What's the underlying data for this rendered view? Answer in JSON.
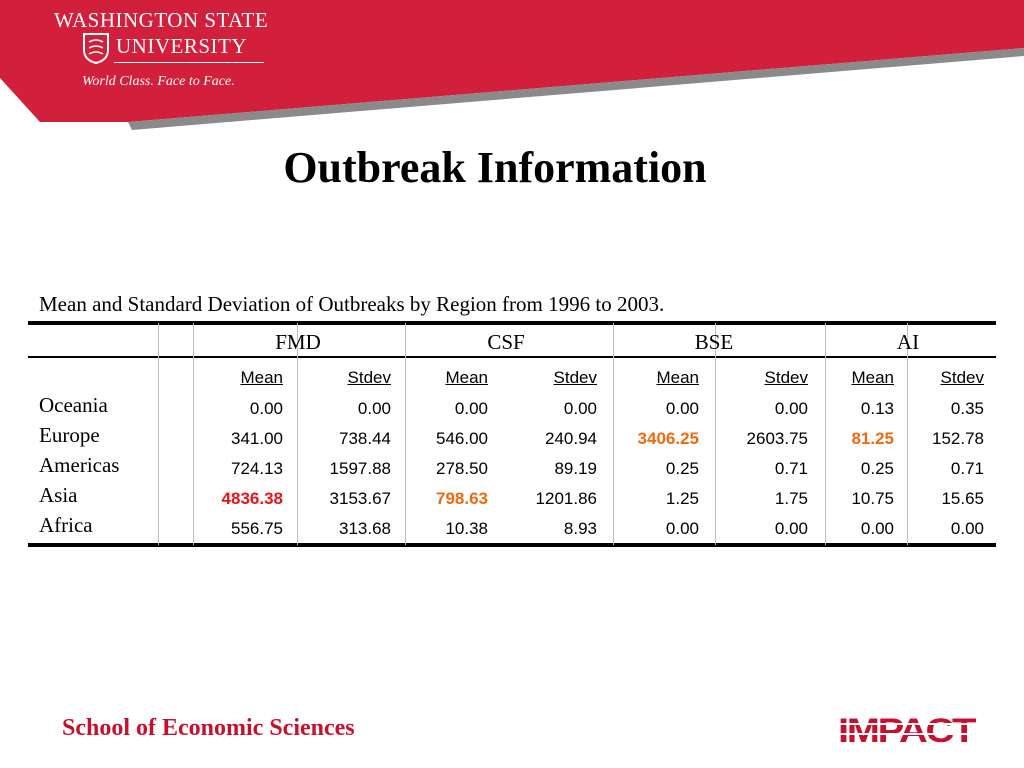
{
  "brand": {
    "line1": "WASHINGTON STATE",
    "line2": "UNIVERSITY",
    "tagline": "World Class. Face to Face.",
    "color": "#d21f3c"
  },
  "title": "Outbreak Information",
  "caption": "Mean and Standard Deviation of Outbreaks by Region from 1996 to 2003.",
  "table": {
    "diseases": [
      "FMD",
      "CSF",
      "BSE",
      "AI"
    ],
    "subheaders": [
      "Mean",
      "Stdev",
      "Mean",
      "Stdev",
      "Mean",
      "Stdev",
      "Mean",
      "Stdev"
    ],
    "rows": [
      {
        "region": "Oceania",
        "values": [
          "0.00",
          "0.00",
          "0.00",
          "0.00",
          "0.00",
          "0.00",
          "0.13",
          "0.35"
        ]
      },
      {
        "region": "Europe",
        "values": [
          "341.00",
          "738.44",
          "546.00",
          "240.94",
          "3406.25",
          "2603.75",
          "81.25",
          "152.78"
        ]
      },
      {
        "region": "Americas",
        "values": [
          "724.13",
          "1597.88",
          "278.50",
          "89.19",
          "0.25",
          "0.71",
          "0.25",
          "0.71"
        ]
      },
      {
        "region": "Asia",
        "values": [
          "4836.38",
          "3153.67",
          "798.63",
          "1201.86",
          "1.25",
          "1.75",
          "10.75",
          "15.65"
        ]
      },
      {
        "region": "Africa",
        "values": [
          "556.75",
          "313.68",
          "10.38",
          "8.93",
          "0.00",
          "0.00",
          "0.00",
          "0.00"
        ]
      }
    ],
    "highlights": [
      {
        "row": 3,
        "col": 0,
        "color": "red"
      },
      {
        "row": 1,
        "col": 4,
        "color": "orange"
      },
      {
        "row": 1,
        "col": 6,
        "color": "orange"
      },
      {
        "row": 3,
        "col": 2,
        "color": "orange"
      }
    ]
  },
  "footer": "School of Economic Sciences",
  "footer_logo": "IMPACT"
}
